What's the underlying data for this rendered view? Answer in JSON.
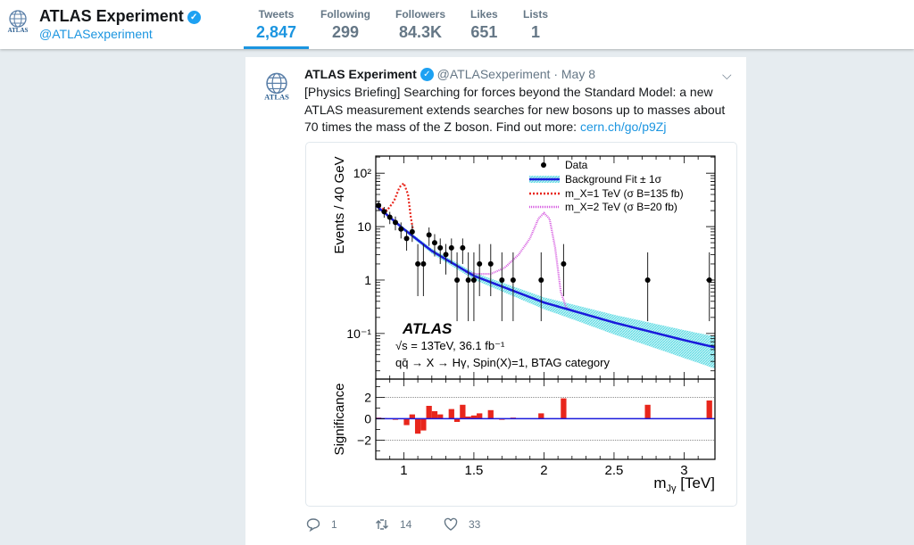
{
  "profile": {
    "name": "ATLAS Experiment",
    "handle": "@ATLASexperiment",
    "logo_text": "ATLAS"
  },
  "stats": [
    {
      "label": "Tweets",
      "value": "2,847",
      "active": true
    },
    {
      "label": "Following",
      "value": "299"
    },
    {
      "label": "Followers",
      "value": "84.3K"
    },
    {
      "label": "Likes",
      "value": "651"
    },
    {
      "label": "Lists",
      "value": "1"
    }
  ],
  "tweet": {
    "name": "ATLAS Experiment",
    "handle": "@ATLASexperiment",
    "date": "· May 8",
    "text": "[Physics Briefing] Searching for forces beyond the Standard Model: a new ATLAS measurement extends searches for new bosons up to masses about 70 times the mass of the Z boson. Find out more: ",
    "link": "cern.ch/go/p9Zj",
    "replies": "1",
    "retweets": "14",
    "likes": "33"
  },
  "colors": {
    "accent": "#1b95e0",
    "data": "#000000",
    "fit": "#1a1adb",
    "band": "#7fe3ea",
    "sig1": "#e8261c",
    "sig2": "#d65ce0",
    "sigbar": "#e8261c"
  },
  "chart_data": {
    "type": "scatter",
    "xlabel": "m_Jγ [TeV]",
    "ylabel": "Events / 40 GeV",
    "ylabel_bottom": "Significance",
    "xlim": [
      0.8,
      3.22
    ],
    "ylim": [
      0.014,
      209
    ],
    "yscale": "log",
    "sig_ylim": [
      -3.8,
      3.7
    ],
    "xticks": [
      "1",
      "1.5",
      "2",
      "2.5",
      "3"
    ],
    "xtick_values": [
      1,
      1.5,
      2,
      2.5,
      3
    ],
    "yticks": [
      {
        "v": 100,
        "l": "10²"
      },
      {
        "v": 10,
        "l": "10"
      },
      {
        "v": 1,
        "l": "1"
      },
      {
        "v": 0.1,
        "l": "10⁻¹"
      }
    ],
    "sig_yticks": [
      {
        "v": 2,
        "l": "2"
      },
      {
        "v": 0,
        "l": "0"
      },
      {
        "v": -2,
        "l": "−2"
      }
    ],
    "legend": [
      "Data",
      "Background Fit ± 1σ",
      "m_X=1 TeV (σ B=135 fb)",
      "m_X=2 TeV (σ B=20 fb)"
    ],
    "legend_placement": "top-right",
    "annotations": {
      "experiment": "ATLAS",
      "energy": "√s = 13TeV, 36.1 fb⁻¹",
      "process": "qq̄ → X → Hγ, Spin(X)=1, BTAG category"
    },
    "data": [
      [
        0.82,
        25
      ],
      [
        0.86,
        19
      ],
      [
        0.9,
        15
      ],
      [
        0.94,
        12
      ],
      [
        0.98,
        9
      ],
      [
        1.02,
        6
      ],
      [
        1.06,
        8
      ],
      [
        1.1,
        2
      ],
      [
        1.14,
        2
      ],
      [
        1.18,
        7
      ],
      [
        1.22,
        5
      ],
      [
        1.26,
        4
      ],
      [
        1.3,
        3
      ],
      [
        1.34,
        4
      ],
      [
        1.38,
        1
      ],
      [
        1.42,
        4
      ],
      [
        1.46,
        1
      ],
      [
        1.5,
        1
      ],
      [
        1.54,
        2
      ],
      [
        1.62,
        2
      ],
      [
        1.7,
        1
      ],
      [
        1.78,
        1
      ],
      [
        1.98,
        1
      ],
      [
        2.14,
        2
      ],
      [
        2.74,
        1
      ],
      [
        3.18,
        1
      ]
    ],
    "background": [
      [
        0.8,
        25
      ],
      [
        1.0,
        9
      ],
      [
        1.2,
        3.5
      ],
      [
        1.5,
        1.2
      ],
      [
        2.0,
        0.38
      ],
      [
        2.5,
        0.16
      ],
      [
        3.0,
        0.075
      ],
      [
        3.22,
        0.055
      ]
    ],
    "band_rel": [
      [
        0.8,
        0.05
      ],
      [
        1.5,
        0.15
      ],
      [
        2.0,
        0.25
      ],
      [
        2.5,
        0.4
      ],
      [
        3.22,
        0.6
      ]
    ],
    "signal_1tev": [
      [
        0.8,
        25
      ],
      [
        0.88,
        20
      ],
      [
        0.93,
        30
      ],
      [
        0.97,
        55
      ],
      [
        1.0,
        65
      ],
      [
        1.03,
        40
      ],
      [
        1.05,
        15
      ],
      [
        1.07,
        7.5
      ]
    ],
    "signal_2tev": [
      [
        1.44,
        1.4
      ],
      [
        1.52,
        1.3
      ],
      [
        1.62,
        1.3
      ],
      [
        1.72,
        1.7
      ],
      [
        1.82,
        3
      ],
      [
        1.9,
        6
      ],
      [
        1.96,
        14
      ],
      [
        2.0,
        18
      ],
      [
        2.04,
        14
      ],
      [
        2.08,
        4
      ],
      [
        2.12,
        0.6
      ],
      [
        2.16,
        0.3
      ],
      [
        2.2,
        0.27
      ]
    ],
    "significance": [
      [
        0.82,
        0.1
      ],
      [
        0.86,
        0.05
      ],
      [
        0.94,
        -0.1
      ],
      [
        1.02,
        -0.6
      ],
      [
        1.06,
        0.4
      ],
      [
        1.1,
        -1.4
      ],
      [
        1.14,
        -1.1
      ],
      [
        1.18,
        1.2
      ],
      [
        1.22,
        0.7
      ],
      [
        1.26,
        0.4
      ],
      [
        1.34,
        0.9
      ],
      [
        1.38,
        -0.3
      ],
      [
        1.42,
        1.3
      ],
      [
        1.46,
        0.2
      ],
      [
        1.5,
        0.3
      ],
      [
        1.54,
        0.5
      ],
      [
        1.62,
        0.8
      ],
      [
        1.7,
        -0.1
      ],
      [
        1.78,
        0.1
      ],
      [
        1.98,
        0.5
      ],
      [
        2.14,
        1.9
      ],
      [
        2.74,
        1.3
      ],
      [
        3.18,
        1.7
      ]
    ]
  }
}
